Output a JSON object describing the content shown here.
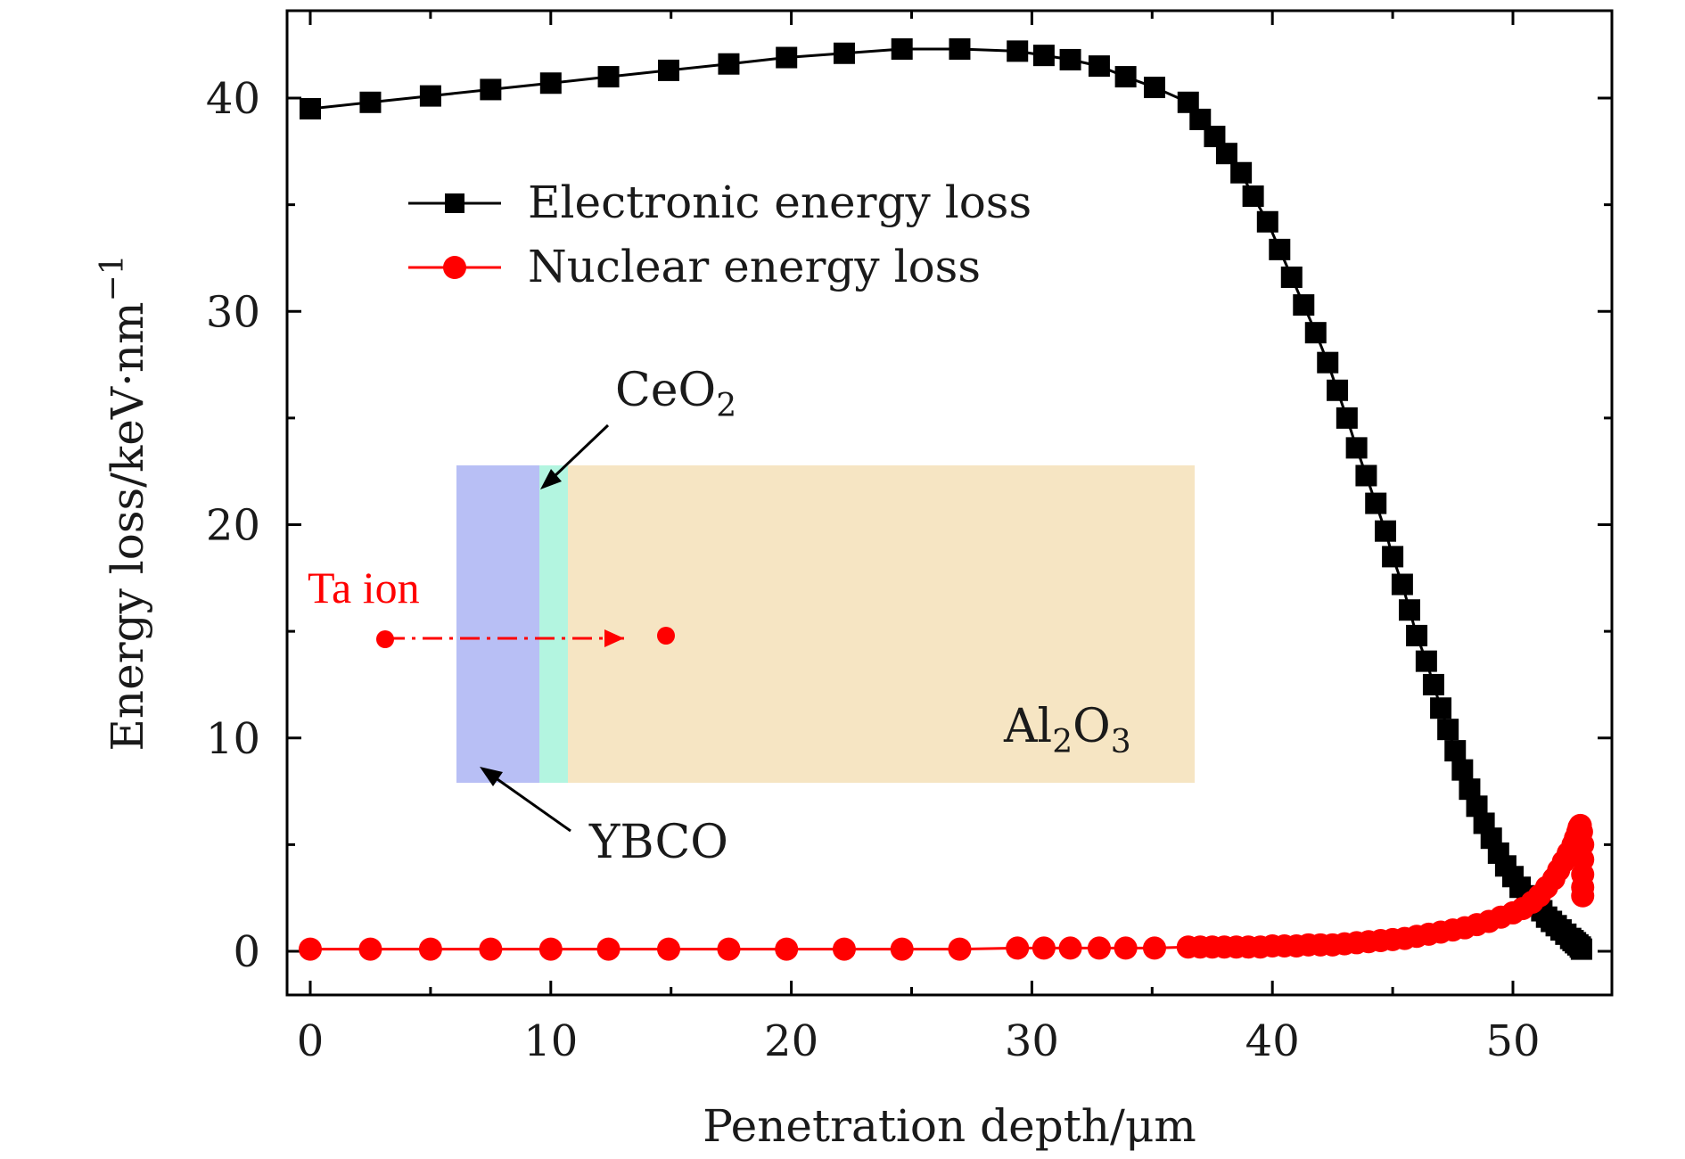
{
  "chart_data": {
    "type": "scatter",
    "title": "",
    "xlabel": "Penetration depth/μm",
    "ylabel": "Energy loss/keV·nm",
    "ylabel_superscript": "−1",
    "xlim": [
      -1,
      54
    ],
    "ylim": [
      -2,
      44
    ],
    "xticks": [
      0,
      10,
      20,
      30,
      40,
      50
    ],
    "yticks": [
      0,
      10,
      20,
      30,
      40
    ],
    "grid": false,
    "legend_position": "top-left",
    "series": [
      {
        "name": "Electronic energy loss",
        "color": "#000000",
        "marker": "square",
        "x": [
          0,
          2.5,
          5,
          7.5,
          10,
          12.4,
          14.9,
          17.4,
          19.8,
          22.2,
          24.6,
          27,
          29.4,
          30.5,
          31.6,
          32.8,
          33.9,
          35.1,
          36.5,
          37.0,
          37.6,
          38.1,
          38.7,
          39.2,
          39.8,
          40.3,
          40.8,
          41.3,
          41.8,
          42.3,
          42.7,
          43.1,
          43.5,
          43.9,
          44.3,
          44.7,
          45.0,
          45.4,
          45.7,
          46.0,
          46.4,
          46.7,
          47.0,
          47.3,
          47.6,
          47.9,
          48.2,
          48.5,
          48.8,
          49.1,
          49.4,
          49.7,
          50.0,
          50.3,
          50.6,
          50.9,
          51.2,
          51.4,
          51.6,
          51.8,
          52.0,
          52.2,
          52.4,
          52.5,
          52.6,
          52.7,
          52.8,
          52.85
        ],
        "y": [
          39.5,
          39.8,
          40.1,
          40.4,
          40.7,
          41.0,
          41.3,
          41.6,
          41.9,
          42.1,
          42.3,
          42.3,
          42.2,
          42.0,
          41.8,
          41.5,
          41.0,
          40.5,
          39.8,
          39.0,
          38.2,
          37.4,
          36.5,
          35.4,
          34.2,
          32.9,
          31.6,
          30.3,
          29.0,
          27.6,
          26.3,
          25.0,
          23.6,
          22.3,
          21.0,
          19.7,
          18.5,
          17.2,
          16.0,
          14.8,
          13.6,
          12.5,
          11.4,
          10.4,
          9.4,
          8.5,
          7.6,
          6.8,
          6.0,
          5.3,
          4.6,
          4.0,
          3.5,
          3.0,
          2.6,
          2.2,
          1.9,
          1.6,
          1.4,
          1.2,
          1.0,
          0.8,
          0.6,
          0.5,
          0.4,
          0.3,
          0.2,
          0.1
        ]
      },
      {
        "name": "Nuclear energy loss",
        "color": "#ff0000",
        "marker": "circle",
        "x": [
          0,
          2.5,
          5,
          7.5,
          10,
          12.4,
          14.9,
          17.4,
          19.8,
          22.2,
          24.6,
          27,
          29.4,
          30.5,
          31.6,
          32.8,
          33.9,
          35.1,
          36.5,
          37.0,
          37.5,
          38.0,
          38.5,
          39.0,
          39.5,
          40.0,
          40.5,
          41.0,
          41.5,
          42.0,
          42.5,
          43.0,
          43.5,
          44.0,
          44.5,
          45.0,
          45.5,
          46.0,
          46.5,
          47.0,
          47.5,
          48.0,
          48.5,
          49.0,
          49.5,
          50.0,
          50.4,
          50.8,
          51.1,
          51.4,
          51.7,
          51.9,
          52.1,
          52.3,
          52.5,
          52.6,
          52.7,
          52.75,
          52.8,
          52.85,
          52.9,
          52.9,
          52.9,
          52.9,
          52.9
        ],
        "y": [
          0.1,
          0.1,
          0.1,
          0.1,
          0.1,
          0.1,
          0.1,
          0.1,
          0.1,
          0.1,
          0.1,
          0.1,
          0.15,
          0.15,
          0.15,
          0.15,
          0.15,
          0.15,
          0.2,
          0.2,
          0.2,
          0.2,
          0.2,
          0.2,
          0.2,
          0.25,
          0.25,
          0.25,
          0.3,
          0.3,
          0.3,
          0.35,
          0.4,
          0.45,
          0.5,
          0.55,
          0.6,
          0.7,
          0.8,
          0.9,
          1.0,
          1.1,
          1.25,
          1.4,
          1.6,
          1.8,
          2.0,
          2.3,
          2.6,
          3.0,
          3.4,
          3.8,
          4.2,
          4.6,
          5.0,
          5.3,
          5.6,
          5.8,
          5.9,
          5.6,
          5.0,
          4.3,
          3.6,
          3.0,
          2.6
        ]
      }
    ],
    "legend": [
      "Electronic energy loss",
      "Nuclear energy loss"
    ],
    "annotations": {
      "ceo2": "CeO",
      "ceo2_sub": "2",
      "al2o3_a": "Al",
      "al2o3_sub1": "2",
      "al2o3_b": "O",
      "al2o3_sub2": "3",
      "ybco": "YBCO",
      "ta_ion": "Ta ion"
    },
    "inset_layers": [
      {
        "name": "YBCO",
        "color": "#b8bff5"
      },
      {
        "name": "CeO2",
        "color": "#b3f5e0"
      },
      {
        "name": "Al2O3",
        "color": "#f6e5c3"
      }
    ]
  }
}
